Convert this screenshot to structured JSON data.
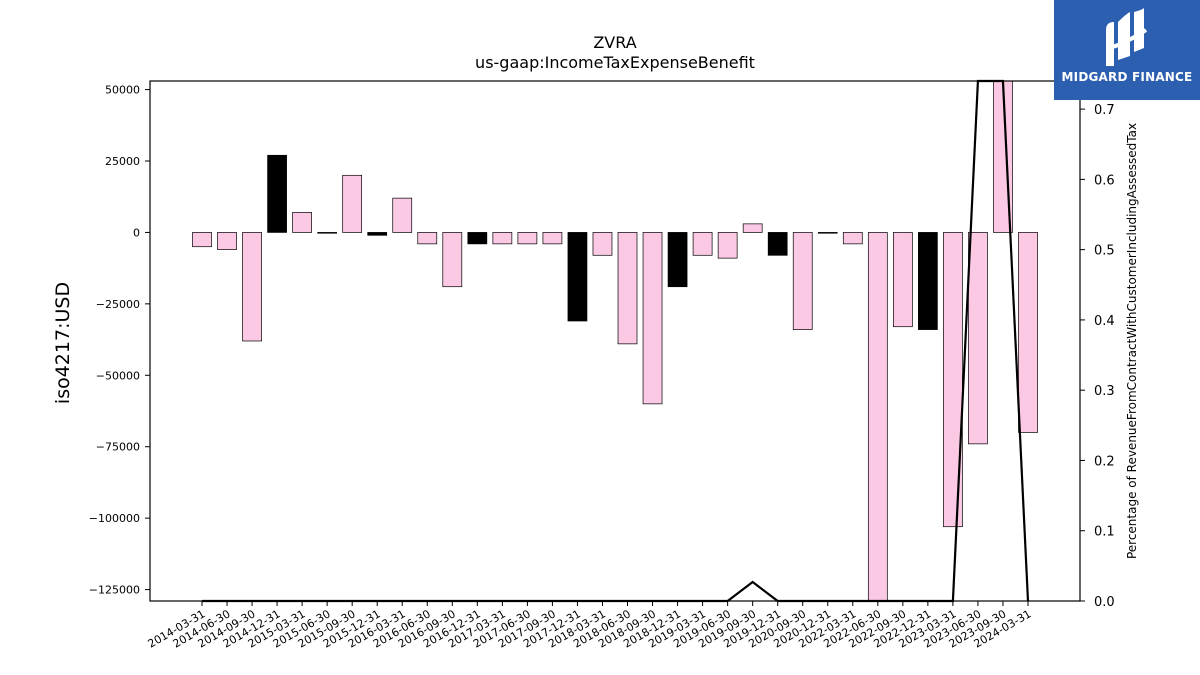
{
  "logo": {
    "brand_text": "MIDGARD FINANCE"
  },
  "chart_data": {
    "type": "bar",
    "title": "ZVRA",
    "subtitle": "us-gaap:IncomeTaxExpenseBenefit",
    "ylabel": "iso4217:USD",
    "y2label": "Percentage of RevenueFromContractWithCustomerIncludingAssessedTax",
    "ylim": [
      -129000,
      53000
    ],
    "y2lim": [
      0.0,
      0.74
    ],
    "yticks": [
      50000,
      25000,
      0,
      -25000,
      -50000,
      -75000,
      -100000,
      -125000
    ],
    "ytick_labels": [
      "50000",
      "25000",
      "0",
      "−25000",
      "−50000",
      "−75000",
      "−100000",
      "−125000"
    ],
    "y2ticks": [
      0.0,
      0.1,
      0.2,
      0.3,
      0.4,
      0.5,
      0.6,
      0.7
    ],
    "y2tick_labels": [
      "0.0",
      "0.1",
      "0.2",
      "0.3",
      "0.4",
      "0.5",
      "0.6",
      "0.7"
    ],
    "x_labels": [
      "2014-03-31",
      "2014-06-30",
      "2014-09-30",
      "2014-12-31",
      "2015-03-31",
      "2015-06-30",
      "2015-09-30",
      "2015-12-31",
      "2016-03-31",
      "2016-06-30",
      "2016-09-30",
      "2016-12-31",
      "2017-03-31",
      "2017-06-30",
      "2017-09-30",
      "2017-12-31",
      "2018-03-31",
      "2018-06-30",
      "2018-09-30",
      "2018-12-31",
      "2019-03-31",
      "2019-06-30",
      "2019-09-30",
      "2019-12-31",
      "2020-09-30",
      "2020-12-31",
      "2022-03-31",
      "2022-06-30",
      "2022-09-30",
      "2022-12-31",
      "2023-03-31",
      "2023-06-30",
      "2023-09-30",
      "2024-03-31"
    ],
    "categories": [
      "2014-03-31",
      "2014-06-30",
      "2014-09-30",
      "2014-12-31",
      "2015-03-31",
      "2015-06-30",
      "2015-09-30",
      "2015-12-31",
      "2016-03-31",
      "2016-06-30",
      "2016-09-30",
      "2016-12-31",
      "2017-03-31",
      "2017-06-30",
      "2017-09-30",
      "2017-12-31",
      "2018-03-31",
      "2018-06-30",
      "2018-09-30",
      "2018-12-31",
      "2019-03-31",
      "2019-06-30",
      "2019-09-30",
      "2019-12-31",
      "2020-09-30",
      "2020-12-31",
      "2022-03-31",
      "2022-06-30",
      "2022-09-30",
      "2022-12-31",
      "2023-03-31",
      "2023-06-30",
      "2023-09-30",
      "2024-03-31"
    ],
    "values": [
      -5000,
      -6000,
      -38000,
      27000,
      7000,
      -200,
      20000,
      -1000,
      12000,
      -4000,
      -19000,
      -4000,
      -4000,
      -4000,
      -4000,
      -31000,
      -8000,
      -39000,
      -60000,
      -19000,
      -8000,
      -9000,
      3000,
      -8000,
      -34000,
      -200,
      -4000,
      -129000,
      -33000,
      -34000,
      -103000,
      -74000,
      53000,
      -70000
    ],
    "bar_colors": [
      "#fbc9e3",
      "#fbc9e3",
      "#fbc9e3",
      "#000000",
      "#fbc9e3",
      "#000000",
      "#fbc9e3",
      "#000000",
      "#fbc9e3",
      "#fbc9e3",
      "#fbc9e3",
      "#000000",
      "#fbc9e3",
      "#fbc9e3",
      "#fbc9e3",
      "#000000",
      "#fbc9e3",
      "#fbc9e3",
      "#fbc9e3",
      "#000000",
      "#fbc9e3",
      "#fbc9e3",
      "#fbc9e3",
      "#000000",
      "#fbc9e3",
      "#000000",
      "#fbc9e3",
      "#fbc9e3",
      "#fbc9e3",
      "#000000",
      "#fbc9e3",
      "#fbc9e3",
      "#fbc9e3",
      "#fbc9e3"
    ],
    "line_series": {
      "axis": "right",
      "values": [
        0,
        0,
        0,
        0,
        0,
        0,
        0,
        0,
        0,
        0,
        0,
        0,
        0,
        0,
        0,
        0,
        0,
        0,
        0,
        0,
        0,
        0,
        0.027,
        0,
        0,
        0,
        0,
        0,
        0,
        0,
        0,
        0.74,
        0.74,
        0
      ],
      "color": "#000000"
    },
    "grid": false,
    "legend": "none"
  }
}
